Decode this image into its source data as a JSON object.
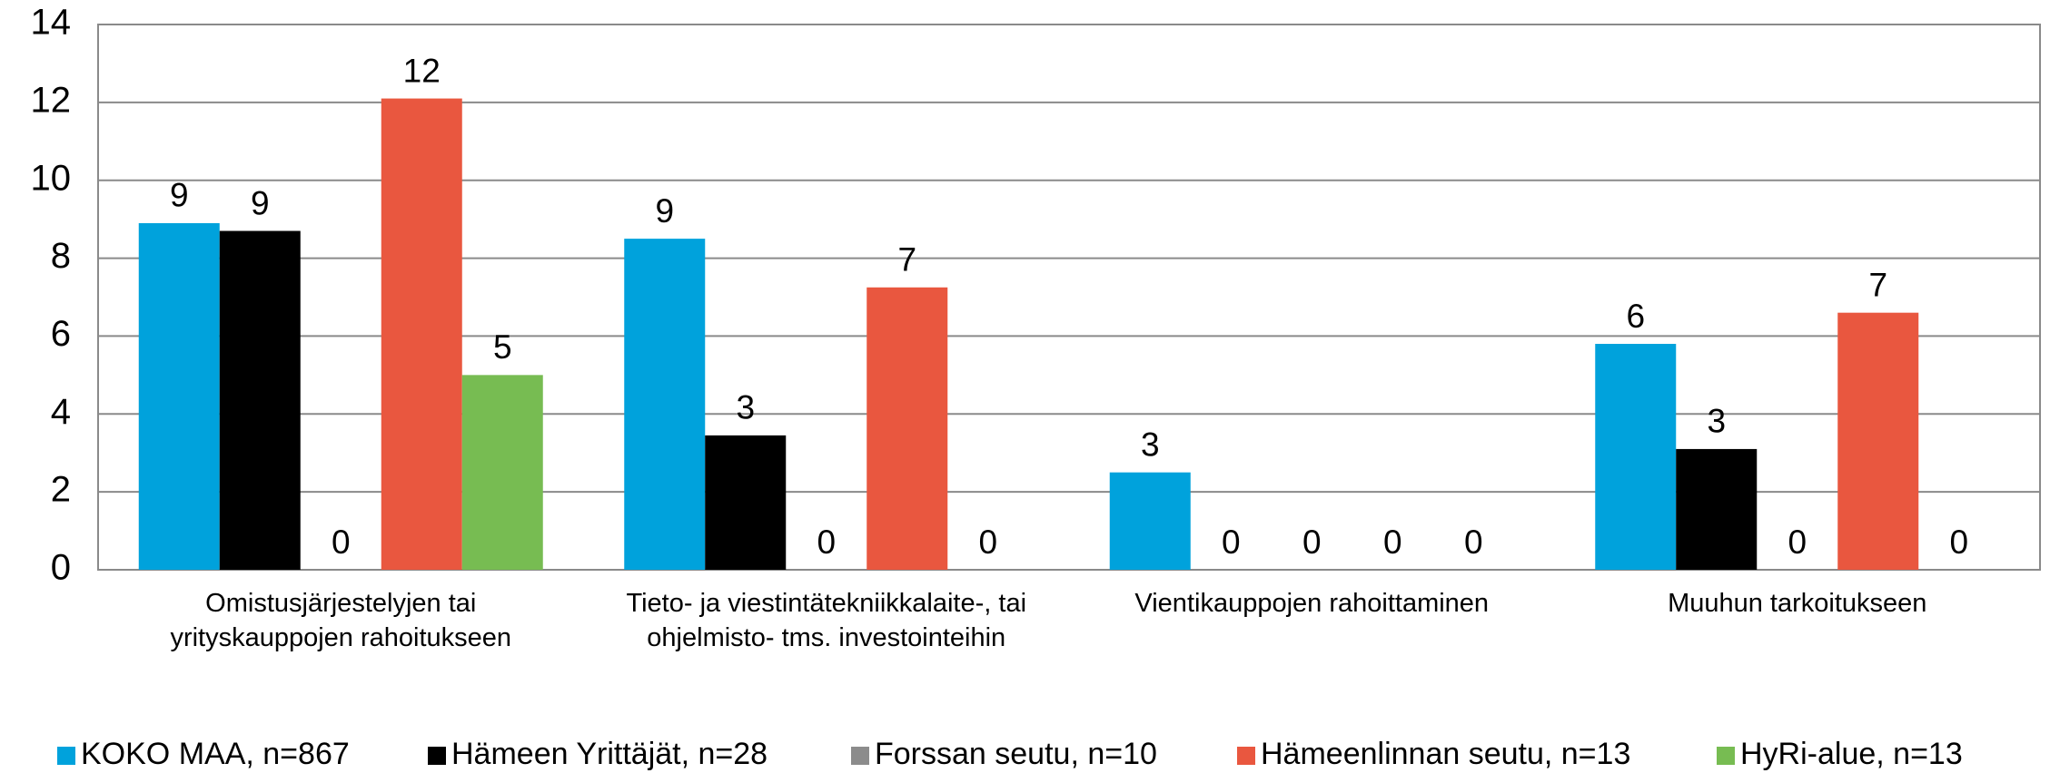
{
  "chart_data": {
    "type": "bar",
    "categories": [
      "Omistusjärjestelyjen tai\nyrityskauppojen rahoitukseen",
      "Tieto- ja viestintätekniikkalaite-, tai\nohjelmisto- tms. investointeihin",
      "Vientikauppojen rahoittaminen",
      "Muuhun tarkoitukseen"
    ],
    "series": [
      {
        "name": "KOKO MAA, n=867",
        "color": "#00a2dc",
        "values": [
          8.9,
          8.5,
          2.5,
          5.8
        ],
        "value_labels": [
          "9",
          "9",
          "3",
          "6"
        ]
      },
      {
        "name": "Hämeen Yrittäjät, n=28",
        "color": "#000000",
        "values": [
          8.7,
          3.45,
          0,
          3.1
        ],
        "value_labels": [
          "9",
          "3",
          "0",
          "3"
        ]
      },
      {
        "name": "Forssan seutu, n=10",
        "color": "#8c8c8c",
        "values": [
          0,
          0,
          0,
          0
        ],
        "value_labels": [
          "0",
          "0",
          "0",
          "0"
        ]
      },
      {
        "name": "Hämeenlinnan seutu, n=13",
        "color": "#e9573f",
        "values": [
          12.1,
          7.25,
          0,
          6.6
        ],
        "value_labels": [
          "12",
          "7",
          "0",
          "7"
        ]
      },
      {
        "name": "HyRi-alue, n=13",
        "color": "#77bc52",
        "values": [
          5.0,
          0,
          0,
          0
        ],
        "value_labels": [
          "5",
          "0",
          "0",
          "0"
        ]
      }
    ],
    "ylim": [
      0,
      14
    ],
    "yticks": [
      0,
      2,
      4,
      6,
      8,
      10,
      12,
      14
    ],
    "grid": true,
    "legend": "bottom"
  }
}
